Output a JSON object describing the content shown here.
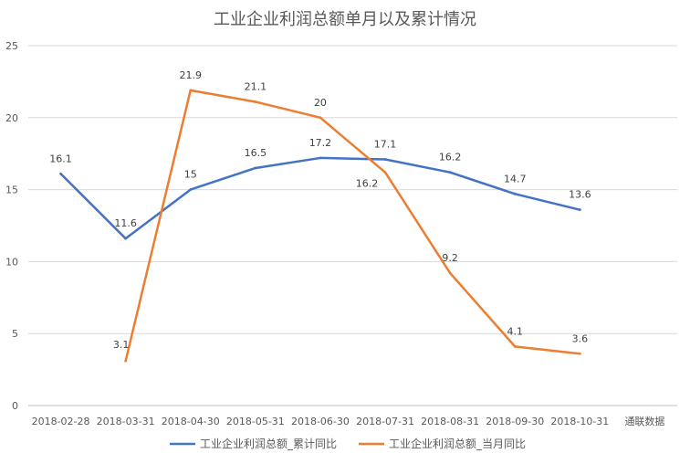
{
  "chart_data": {
    "type": "line",
    "title": "工业企业利润总额单月以及累计情况",
    "categories": [
      "2018-02-28",
      "2018-03-31",
      "2018-04-30",
      "2018-05-31",
      "2018-06-30",
      "2018-07-31",
      "2018-08-31",
      "2018-09-30",
      "2018-10-31"
    ],
    "extra_axis_label": "通联数据",
    "ylim": [
      0,
      25
    ],
    "yticks": [
      0,
      5,
      10,
      15,
      20,
      25
    ],
    "grid": true,
    "legend_position": "bottom",
    "series": [
      {
        "name": "工业企业利润总额_累计同比",
        "color": "#4472c4",
        "values": [
          16.1,
          11.6,
          15,
          16.5,
          17.2,
          17.1,
          16.2,
          14.7,
          13.6
        ]
      },
      {
        "name": "工业企业利润总额_当月同比",
        "color": "#ed7d31",
        "values": [
          null,
          3.1,
          21.9,
          21.1,
          20,
          16.2,
          9.2,
          4.1,
          3.6
        ]
      }
    ]
  }
}
